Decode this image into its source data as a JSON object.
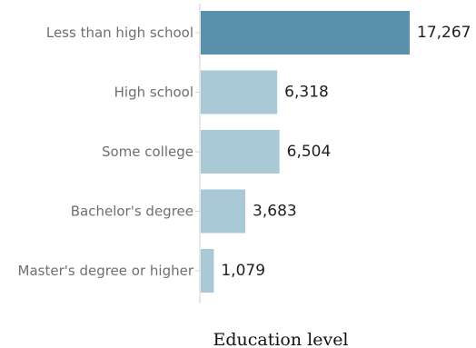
{
  "chart_data": {
    "type": "bar",
    "orientation": "horizontal",
    "categories": [
      "Less than high school",
      "High school",
      "Some college",
      "Bachelor's degree",
      "Master's degree or higher"
    ],
    "values": [
      17267,
      6318,
      6504,
      3683,
      1079
    ],
    "value_labels": [
      "17,267",
      "6,318",
      "6,504",
      "3,683",
      "1,079"
    ],
    "xlabel": "Education level",
    "ylabel": "",
    "xlim": [
      0,
      17267
    ],
    "grid": false,
    "highlight_index": 0,
    "colors": {
      "highlight": "#5b90ad",
      "default": "#a9c9d7",
      "axis": "#cfcfcf"
    }
  }
}
